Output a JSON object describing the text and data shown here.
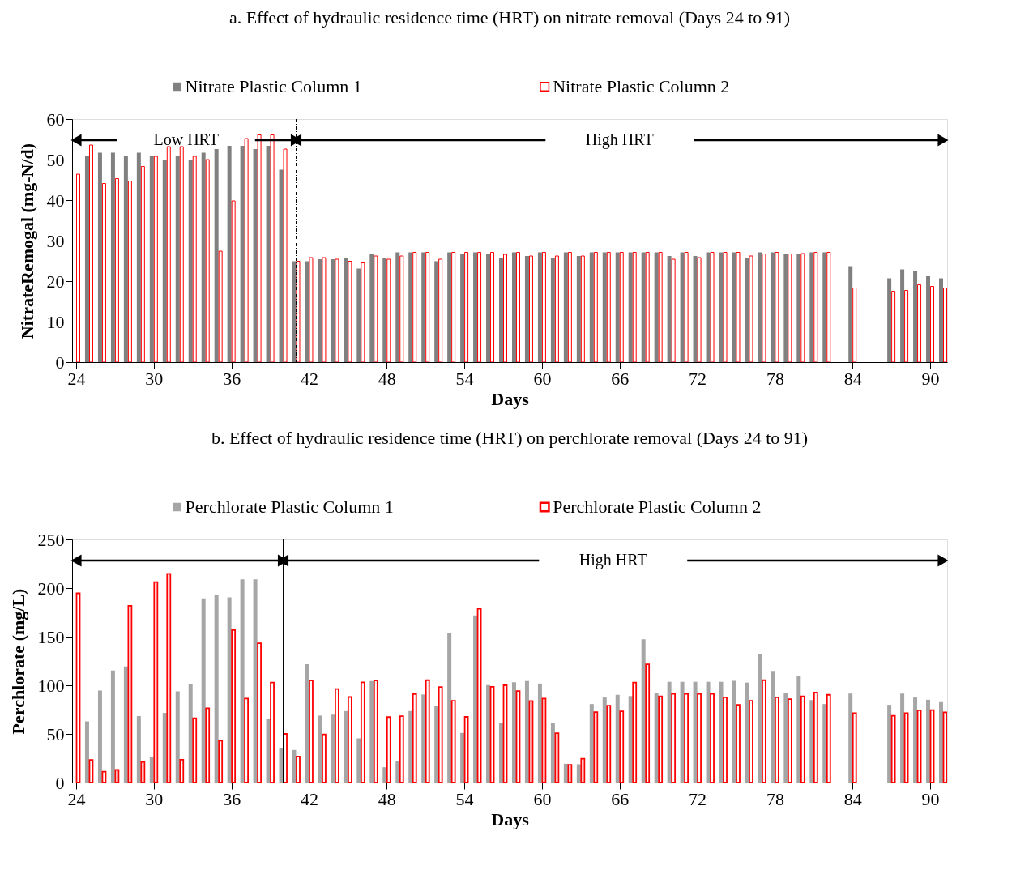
{
  "chart_data": [
    {
      "type": "bar",
      "title": "a. Effect of hydraulic residence time (HRT) on nitrate removal (Days 24 to 91)",
      "xlabel": "Days",
      "ylabel": "NitrateRemogal (mg-N/d)",
      "x": [
        24,
        25,
        26,
        27,
        28,
        29,
        30,
        31,
        32,
        33,
        34,
        35,
        36,
        37,
        38,
        39,
        40,
        41,
        42,
        43,
        44,
        45,
        46,
        47,
        48,
        49,
        50,
        51,
        52,
        53,
        54,
        55,
        56,
        57,
        58,
        59,
        60,
        61,
        62,
        63,
        64,
        65,
        66,
        67,
        68,
        69,
        70,
        71,
        72,
        73,
        74,
        75,
        76,
        77,
        78,
        79,
        80,
        81,
        82,
        83,
        84,
        85,
        86,
        87,
        88,
        89,
        90,
        91
      ],
      "series": [
        {
          "name": "Nitrate Plastic Column 1",
          "color": "#808080",
          "values": [
            null,
            50.8,
            51.7,
            51.7,
            50.8,
            51.7,
            50.8,
            50.0,
            50.8,
            50.0,
            51.7,
            52.6,
            53.4,
            53.4,
            52.6,
            53.4,
            47.5,
            24.9,
            24.9,
            25.4,
            25.4,
            25.8,
            23.1,
            26.6,
            25.8,
            27.1,
            27.1,
            27.1,
            24.9,
            27.1,
            26.6,
            27.1,
            26.6,
            25.8,
            27.1,
            26.2,
            27.1,
            25.8,
            27.1,
            26.2,
            27.1,
            27.1,
            27.1,
            27.1,
            27.1,
            27.1,
            26.2,
            27.1,
            26.2,
            27.1,
            27.1,
            27.1,
            25.8,
            27.1,
            27.1,
            26.6,
            26.6,
            27.1,
            27.1,
            null,
            23.7,
            null,
            null,
            20.7,
            22.9,
            22.6,
            21.2,
            20.7
          ]
        },
        {
          "name": "Nitrate Plastic Column 2",
          "color": "#ff0000",
          "values": [
            46.4,
            53.6,
            44.1,
            45.3,
            44.7,
            48.3,
            50.8,
            53.2,
            53.2,
            50.8,
            50.0,
            27.4,
            39.8,
            55.2,
            56.1,
            56.1,
            52.6,
            24.9,
            25.8,
            25.8,
            25.4,
            24.9,
            24.5,
            26.2,
            25.4,
            26.2,
            27.1,
            27.1,
            25.4,
            27.1,
            27.1,
            27.1,
            27.1,
            26.6,
            27.1,
            26.2,
            27.1,
            26.2,
            27.1,
            26.2,
            27.1,
            27.1,
            27.1,
            27.1,
            27.1,
            27.1,
            25.4,
            27.1,
            25.8,
            27.1,
            27.1,
            27.1,
            26.2,
            26.7,
            27.1,
            26.7,
            26.8,
            27.1,
            27.1,
            null,
            18.3,
            null,
            null,
            17.5,
            17.7,
            19.1,
            18.7,
            18.3
          ]
        }
      ],
      "xlim": [
        24,
        91
      ],
      "xticks": [
        24,
        30,
        36,
        42,
        48,
        54,
        60,
        66,
        72,
        78,
        84,
        90
      ],
      "ylim": [
        0,
        60
      ],
      "yticks": [
        0,
        10,
        20,
        30,
        40,
        50,
        60
      ],
      "grid": false,
      "legend": "top",
      "ref_lines": [
        {
          "axis": "x",
          "value": 41,
          "line_style": "dashed"
        }
      ],
      "annotations": [
        "Low HRT",
        "High HRT"
      ]
    },
    {
      "type": "bar",
      "title": "b. Effect of hydraulic residence time (HRT) on perchlorate removal (Days 24 to 91)",
      "xlabel": "Days",
      "ylabel": "Perchlorate (mg/L)",
      "x": [
        24,
        25,
        26,
        27,
        28,
        29,
        30,
        31,
        32,
        33,
        34,
        35,
        36,
        37,
        38,
        39,
        40,
        41,
        42,
        43,
        44,
        45,
        46,
        47,
        48,
        49,
        50,
        51,
        52,
        53,
        54,
        55,
        56,
        57,
        58,
        59,
        60,
        61,
        62,
        63,
        64,
        65,
        66,
        67,
        68,
        69,
        70,
        71,
        72,
        73,
        74,
        75,
        76,
        77,
        78,
        79,
        80,
        81,
        82,
        83,
        84,
        85,
        86,
        87,
        88,
        89,
        90,
        91
      ],
      "series": [
        {
          "name": "Perchlorate Plastic Column 1",
          "color": "#a6a6a6",
          "values": [
            null,
            62.9,
            94.6,
            115.2,
            119.3,
            68.3,
            26.5,
            71.6,
            93.8,
            101.3,
            189.4,
            192.5,
            190.5,
            209,
            209,
            65.5,
            35.6,
            33.5,
            121.6,
            68.8,
            69.8,
            73.5,
            45.4,
            104.4,
            15.7,
            22.4,
            73.5,
            90.5,
            78.6,
            153.4,
            51,
            171.9,
            100.3,
            61.3,
            103.1,
            104.4,
            101.8,
            60.8,
            19.3,
            18.8,
            80.7,
            87.4,
            90.2,
            88.9,
            147.2,
            92.5,
            103.6,
            103.6,
            103.6,
            103.6,
            103.6,
            104.6,
            102.8,
            132.5,
            114.7,
            92,
            109.3,
            84.8,
            80.7,
            null,
            91.5,
            null,
            null,
            79.9,
            91.5,
            87.4,
            85.1,
            82.7
          ]
        },
        {
          "name": "Perchlorate Plastic Column 2",
          "color": "#ff0000",
          "values": [
            194.6,
            23.2,
            11.1,
            12.9,
            181.7,
            21.1,
            206.2,
            214.7,
            23.5,
            66.2,
            76.3,
            43,
            156.7,
            86.3,
            143.3,
            102.8,
            50,
            26.8,
            104.9,
            49.5,
            96.1,
            87.9,
            103.1,
            104.9,
            67.3,
            68.3,
            91,
            105.2,
            98.2,
            84,
            67.5,
            178.6,
            98.5,
            100,
            94.1,
            83.8,
            86.3,
            50.8,
            18.3,
            24.5,
            72.4,
            79.1,
            73.2,
            102.8,
            121.6,
            88.7,
            91.2,
            91.2,
            91.2,
            91.2,
            87.6,
            79.9,
            84,
            105.2,
            87.6,
            85.8,
            88.7,
            92.5,
            90.2,
            null,
            71.4,
            null,
            null,
            68.6,
            71.4,
            74.2,
            74.5,
            72.2
          ]
        }
      ],
      "xlim": [
        24,
        91
      ],
      "xticks": [
        24,
        30,
        36,
        42,
        48,
        54,
        60,
        66,
        72,
        78,
        84,
        90
      ],
      "ylim": [
        0,
        250
      ],
      "yticks": [
        0,
        50,
        100,
        150,
        200,
        250
      ],
      "grid": false,
      "legend": "top",
      "ref_lines": [
        {
          "axis": "x",
          "value": 40
        }
      ],
      "annotations": [
        "High HRT"
      ]
    }
  ]
}
